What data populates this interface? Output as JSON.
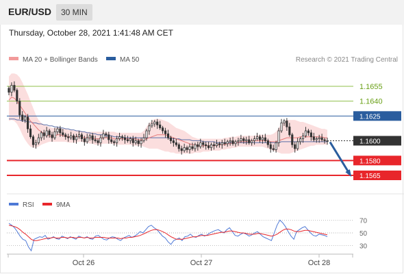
{
  "header": {
    "symbol": "EUR/USD",
    "timeframe": "30 MIN",
    "timestamp": "Thursday, October 28, 2021 1:41:48 AM CET"
  },
  "legend": {
    "ma20_bollinger": "MA 20 + Bollinger Bands",
    "ma50": "MA 50",
    "copyright": "Research © 2021 Trading Central"
  },
  "colors": {
    "candle": "#333333",
    "bollinger_fill": "#f8c8c8",
    "ma20": "#e77a7a",
    "ma50": "#5b6fa8",
    "pivot": "#2a5d9e",
    "resistance": "#8fbf4a",
    "support": "#e8262b",
    "last": "#333333",
    "rsi": "#4e79d6",
    "rsi_ma": "#e8262b"
  },
  "chart_data": [
    {
      "type": "candlestick",
      "ylim": [
        1.1547,
        1.1673
      ],
      "x": [
        "Oct 26",
        "Oct 27",
        "Oct 28"
      ],
      "levels": [
        {
          "label": "1.1655",
          "value": 1.1655,
          "kind": "resistance"
        },
        {
          "label": "1.1640",
          "value": 1.164,
          "kind": "resistance"
        },
        {
          "label": "1.1625",
          "value": 1.1625,
          "kind": "pivot"
        },
        {
          "label": "1.1600",
          "value": 1.16,
          "kind": "last"
        },
        {
          "label": "1.1580",
          "value": 1.158,
          "kind": "support"
        },
        {
          "label": "1.1565",
          "value": 1.1565,
          "kind": "support"
        }
      ],
      "closes": [
        1.1649,
        1.1656,
        1.1651,
        1.164,
        1.1626,
        1.1621,
        1.1624,
        1.1612,
        1.1604,
        1.1596,
        1.1598,
        1.1603,
        1.1608,
        1.1605,
        1.161,
        1.1606,
        1.1603,
        1.1609,
        1.1612,
        1.1608,
        1.1606,
        1.1604,
        1.1603,
        1.1605,
        1.1601,
        1.1604,
        1.1606,
        1.1602,
        1.1599,
        1.1603,
        1.1605,
        1.1601,
        1.16,
        1.1598,
        1.1603,
        1.1607,
        1.1606,
        1.1601,
        1.1599,
        1.1598,
        1.1602,
        1.1604,
        1.1603,
        1.1601,
        1.16,
        1.1602,
        1.1598,
        1.16,
        1.1597,
        1.16,
        1.1603,
        1.161,
        1.1615,
        1.1617,
        1.1619,
        1.1616,
        1.1613,
        1.161,
        1.1607,
        1.1603,
        1.16,
        1.1598,
        1.1596,
        1.1592,
        1.159,
        1.1593,
        1.1591,
        1.1594,
        1.1592,
        1.1596,
        1.1594,
        1.1598,
        1.1596,
        1.1595,
        1.1593,
        1.1596,
        1.1595,
        1.1597,
        1.1596,
        1.1598,
        1.1597,
        1.1599,
        1.16,
        1.1597,
        1.1599,
        1.16,
        1.1602,
        1.16,
        1.1601,
        1.1598,
        1.16,
        1.1602,
        1.1604,
        1.1601,
        1.1603,
        1.16,
        1.1596,
        1.1592,
        1.1591,
        1.1598,
        1.161,
        1.1618,
        1.162,
        1.1614,
        1.1606,
        1.1596,
        1.1592,
        1.1599,
        1.1602,
        1.1605,
        1.161,
        1.1608,
        1.1604,
        1.1601,
        1.1602,
        1.1603,
        1.1601,
        1.16,
        1.16
      ],
      "ma20": [
        1.1641,
        1.1644,
        1.1643,
        1.164,
        1.1636,
        1.1632,
        1.1628,
        1.1624,
        1.162,
        1.1617,
        1.1614,
        1.1611,
        1.1609,
        1.1607,
        1.1606,
        1.1605,
        1.1604,
        1.1605,
        1.1606,
        1.1606,
        1.1605,
        1.1605,
        1.1604,
        1.1604,
        1.1604,
        1.1604,
        1.1605,
        1.1604,
        1.1603,
        1.1603,
        1.1603,
        1.1603,
        1.1602,
        1.1602,
        1.1602,
        1.1603,
        1.1603,
        1.1603,
        1.1603,
        1.1602,
        1.1602,
        1.1602,
        1.1602,
        1.1602,
        1.1602,
        1.1602,
        1.1602,
        1.1602,
        1.1601,
        1.1601,
        1.1601,
        1.1602,
        1.1603,
        1.1604,
        1.1605,
        1.1606,
        1.1606,
        1.1606,
        1.1606,
        1.1605,
        1.1604,
        1.1603,
        1.1602,
        1.1601,
        1.16,
        1.1599,
        1.1598,
        1.1597,
        1.1596,
        1.1596,
        1.1595,
        1.1595,
        1.1595,
        1.1595,
        1.1595,
        1.1595,
        1.1595,
        1.1595,
        1.1596,
        1.1596,
        1.1596,
        1.1597,
        1.1597,
        1.1598,
        1.1598,
        1.1598,
        1.1599,
        1.1599,
        1.1599,
        1.1599,
        1.16,
        1.16,
        1.16,
        1.16,
        1.16,
        1.16,
        1.16,
        1.1599,
        1.1599,
        1.1599,
        1.16,
        1.1601,
        1.1602,
        1.1603,
        1.1603,
        1.1603,
        1.1603,
        1.1603,
        1.1604,
        1.1604,
        1.1604,
        1.1604,
        1.1604,
        1.1604,
        1.1604,
        1.1604,
        1.1604,
        1.1603,
        1.1603
      ],
      "bb_upper": [
        1.1665,
        1.1668,
        1.1668,
        1.1667,
        1.1664,
        1.1659,
        1.1653,
        1.1647,
        1.164,
        1.1633,
        1.1626,
        1.1621,
        1.1618,
        1.1616,
        1.1615,
        1.1614,
        1.1613,
        1.1613,
        1.1613,
        1.1613,
        1.1612,
        1.1612,
        1.1611,
        1.1611,
        1.161,
        1.161,
        1.161,
        1.161,
        1.1609,
        1.1609,
        1.1609,
        1.1609,
        1.1609,
        1.1609,
        1.1609,
        1.1609,
        1.1609,
        1.1609,
        1.1609,
        1.1609,
        1.1608,
        1.1608,
        1.1608,
        1.1608,
        1.1608,
        1.1608,
        1.1608,
        1.1608,
        1.1608,
        1.1608,
        1.161,
        1.1614,
        1.1618,
        1.162,
        1.1622,
        1.1622,
        1.1622,
        1.1621,
        1.162,
        1.1619,
        1.1617,
        1.1615,
        1.1613,
        1.1612,
        1.1611,
        1.161,
        1.1608,
        1.1606,
        1.1604,
        1.1603,
        1.1602,
        1.1602,
        1.1602,
        1.1602,
        1.1602,
        1.1602,
        1.1602,
        1.1602,
        1.1602,
        1.1602,
        1.1603,
        1.1603,
        1.1604,
        1.1604,
        1.1604,
        1.1605,
        1.1605,
        1.1605,
        1.1605,
        1.1605,
        1.1605,
        1.1605,
        1.1606,
        1.1606,
        1.1606,
        1.1606,
        1.1606,
        1.1606,
        1.1607,
        1.1609,
        1.1613,
        1.1617,
        1.162,
        1.1621,
        1.1621,
        1.1621,
        1.1621,
        1.162,
        1.1619,
        1.1619,
        1.1618,
        1.1617,
        1.1616,
        1.1615,
        1.1614,
        1.1613,
        1.1612,
        1.1612,
        1.1611
      ],
      "bb_lower": [
        1.162,
        1.1621,
        1.162,
        1.1617,
        1.1612,
        1.1606,
        1.1601,
        1.1597,
        1.1594,
        1.1593,
        1.1593,
        1.1594,
        1.1596,
        1.1597,
        1.1598,
        1.1599,
        1.1599,
        1.1599,
        1.1599,
        1.1599,
        1.1599,
        1.1599,
        1.1598,
        1.1598,
        1.1598,
        1.1598,
        1.1599,
        1.1599,
        1.1598,
        1.1598,
        1.1597,
        1.1597,
        1.1596,
        1.1596,
        1.1596,
        1.1597,
        1.1597,
        1.1597,
        1.1597,
        1.1596,
        1.1596,
        1.1596,
        1.1596,
        1.1596,
        1.1596,
        1.1596,
        1.1595,
        1.1595,
        1.1595,
        1.1595,
        1.1594,
        1.1593,
        1.1592,
        1.1592,
        1.1592,
        1.1592,
        1.1591,
        1.159,
        1.1589,
        1.1589,
        1.1588,
        1.1588,
        1.1587,
        1.1587,
        1.1587,
        1.1587,
        1.1587,
        1.1587,
        1.1587,
        1.1588,
        1.1588,
        1.1588,
        1.1589,
        1.1589,
        1.1589,
        1.159,
        1.159,
        1.159,
        1.159,
        1.1591,
        1.1591,
        1.1592,
        1.1592,
        1.1593,
        1.1593,
        1.1594,
        1.1594,
        1.1594,
        1.1594,
        1.1594,
        1.1594,
        1.1594,
        1.1594,
        1.1594,
        1.1594,
        1.1593,
        1.1592,
        1.1591,
        1.159,
        1.1589,
        1.1588,
        1.1587,
        1.1587,
        1.1587,
        1.1587,
        1.1588,
        1.1589,
        1.159,
        1.1591,
        1.1592,
        1.1593,
        1.1594,
        1.1595,
        1.1595,
        1.1596,
        1.1596,
        1.1596,
        1.1596,
        1.1596
      ],
      "ma50": [
        1.1622,
        1.1622,
        1.1622,
        1.1621,
        1.1621,
        1.162,
        1.162,
        1.1619,
        1.1619,
        1.1618,
        1.1618,
        1.1617,
        1.1617,
        1.1616,
        1.1616,
        1.1615,
        1.1615,
        1.1614,
        1.1614,
        1.1613,
        1.1613,
        1.1612,
        1.1612,
        1.1611,
        1.1611,
        1.161,
        1.161,
        1.1609,
        1.1609,
        1.1608,
        1.1608,
        1.1607,
        1.1607,
        1.1606,
        1.1606,
        1.1606,
        1.1605,
        1.1605,
        1.1605,
        1.1604,
        1.1604,
        1.1604,
        1.1604,
        1.1603,
        1.1603,
        1.1603,
        1.1603,
        1.1603,
        1.1603,
        1.1603,
        1.1603,
        1.1603,
        1.1603,
        1.1603,
        1.1603,
        1.1603,
        1.1603,
        1.1603,
        1.1603,
        1.1603,
        1.1602,
        1.1602,
        1.1602,
        1.1602,
        1.1601,
        1.1601,
        1.1601,
        1.1601,
        1.16,
        1.16,
        1.16,
        1.16,
        1.1599,
        1.1599,
        1.1599,
        1.1599,
        1.1599,
        1.1598,
        1.1598,
        1.1598,
        1.1598,
        1.1598,
        1.1598,
        1.1598,
        1.1598,
        1.1598,
        1.1598,
        1.1598,
        1.1598,
        1.1598,
        1.1598,
        1.1598,
        1.1598,
        1.1598,
        1.1598,
        1.1598,
        1.1598,
        1.1598,
        1.1598,
        1.1598,
        1.1598,
        1.1599,
        1.1599,
        1.1599,
        1.1599,
        1.1599,
        1.1599,
        1.1599,
        1.1599,
        1.1599,
        1.1599,
        1.1599,
        1.1599,
        1.1599,
        1.1599,
        1.1599,
        1.1599,
        1.1599,
        1.1599
      ],
      "projection": {
        "from": 1.16,
        "to": 1.1565
      }
    },
    {
      "type": "line",
      "yticks": [
        70,
        50,
        30
      ],
      "ylim": [
        20,
        80
      ],
      "series": [
        {
          "name": "RSI",
          "values": [
            65,
            62,
            58,
            52,
            45,
            40,
            38,
            28,
            22,
            40,
            42,
            44,
            43,
            46,
            40,
            42,
            44,
            41,
            40,
            45,
            43,
            41,
            44,
            42,
            40,
            45,
            43,
            42,
            44,
            41,
            40,
            45,
            46,
            43,
            40,
            39,
            42,
            44,
            43,
            40,
            38,
            42,
            44,
            46,
            43,
            45,
            48,
            52,
            50,
            55,
            60,
            62,
            58,
            55,
            50,
            45,
            42,
            36,
            32,
            38,
            40,
            42,
            38,
            44,
            45,
            48,
            44,
            43,
            46,
            48,
            45,
            47,
            50,
            52,
            54,
            55,
            52,
            50,
            55,
            58,
            52,
            46,
            45,
            48,
            50,
            48,
            45,
            47,
            50,
            52,
            48,
            44,
            42,
            40,
            38,
            50,
            62,
            70,
            66,
            60,
            52,
            45,
            40,
            52,
            55,
            58,
            60,
            55,
            50,
            46,
            45,
            48,
            47,
            46,
            44
          ]
        },
        {
          "name": "9MA",
          "values": [
            62,
            61,
            60,
            58,
            55,
            51,
            48,
            44,
            40,
            38,
            38,
            39,
            40,
            41,
            42,
            42,
            43,
            42,
            42,
            43,
            43,
            42,
            43,
            43,
            42,
            43,
            43,
            42,
            43,
            42,
            42,
            43,
            43,
            43,
            43,
            42,
            42,
            42,
            42,
            42,
            41,
            42,
            42,
            43,
            43,
            44,
            45,
            46,
            48,
            50,
            52,
            54,
            55,
            55,
            54,
            52,
            50,
            47,
            44,
            42,
            40,
            40,
            40,
            41,
            42,
            43,
            44,
            44,
            45,
            46,
            46,
            46,
            47,
            48,
            49,
            50,
            51,
            51,
            52,
            53,
            53,
            52,
            51,
            50,
            50,
            49,
            48,
            48,
            48,
            49,
            49,
            48,
            47,
            46,
            45,
            46,
            48,
            51,
            54,
            56,
            56,
            55,
            53,
            52,
            52,
            53,
            54,
            54,
            53,
            52,
            51,
            50,
            49,
            48,
            47
          ]
        }
      ]
    }
  ],
  "osc_legend": {
    "rsi": "RSI",
    "ma": "9MA"
  },
  "dates": [
    "Oct 26",
    "Oct 27",
    "Oct 28"
  ]
}
